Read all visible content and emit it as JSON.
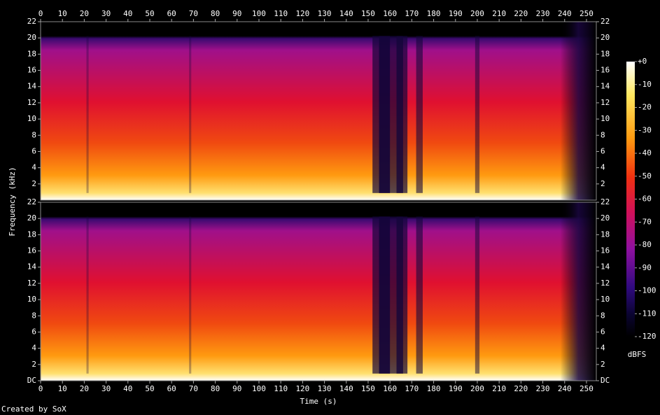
{
  "chart_data": {
    "type": "spectrogram",
    "x_label": "Time (s)",
    "y_label": "Frequency (kHz)",
    "xlim": [
      0,
      254.5
    ],
    "xticks": [
      0,
      10,
      20,
      30,
      40,
      50,
      60,
      70,
      80,
      90,
      100,
      110,
      120,
      130,
      140,
      150,
      160,
      170,
      180,
      190,
      200,
      210,
      220,
      230,
      240,
      250
    ],
    "channels": [
      {
        "ylim": [
          0,
          22
        ],
        "yticks": [
          2,
          4,
          6,
          8,
          10,
          12,
          14,
          16,
          18,
          20,
          22
        ]
      },
      {
        "ylim": [
          0,
          22
        ],
        "yticks": [
          {
            "value": 0,
            "label": "DC"
          },
          2,
          4,
          6,
          8,
          10,
          12,
          14,
          16,
          18,
          20,
          22
        ]
      }
    ],
    "colorbar": {
      "label": "dBFS",
      "lim": [
        -120,
        0
      ],
      "ticks": [
        {
          "value": 0,
          "label": "+0"
        },
        -10,
        -20,
        -30,
        -40,
        -50,
        -60,
        -70,
        -80,
        -90,
        -100,
        -110,
        -120
      ]
    },
    "footer": "Created by SoX"
  }
}
